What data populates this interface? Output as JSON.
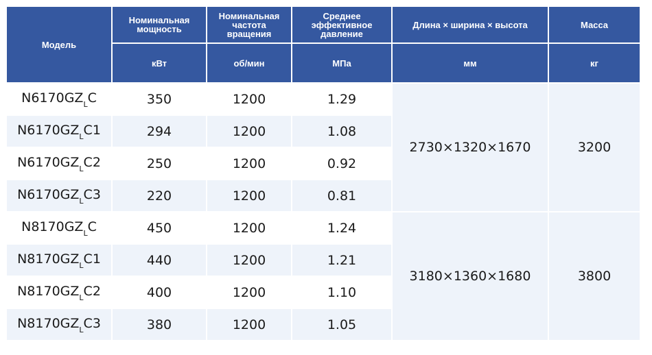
{
  "headers": {
    "model": "Модель",
    "power": "Номинальная мощность",
    "speed": "Номинальная частота вращения",
    "pressure": "Среднее эффективное давление",
    "dimensions": "Длина × ширина × высота",
    "mass": "Масса"
  },
  "units": {
    "power": "кВт",
    "speed": "об/мин",
    "pressure": "МПа",
    "dimensions": "мм",
    "mass": "кг"
  },
  "groups": [
    {
      "dimensions": "2730×1320×1670",
      "mass": "3200",
      "rows": [
        {
          "model_prefix": "N6170GZ",
          "model_sub": "L",
          "model_suffix": "C",
          "power": "350",
          "speed": "1200",
          "pressure": "1.29"
        },
        {
          "model_prefix": "N6170GZ",
          "model_sub": "L",
          "model_suffix": "C1",
          "power": "294",
          "speed": "1200",
          "pressure": "1.08"
        },
        {
          "model_prefix": "N6170GZ",
          "model_sub": "L",
          "model_suffix": "C2",
          "power": "250",
          "speed": "1200",
          "pressure": "0.92"
        },
        {
          "model_prefix": "N6170GZ",
          "model_sub": "L",
          "model_suffix": "C3",
          "power": "220",
          "speed": "1200",
          "pressure": "0.81"
        }
      ]
    },
    {
      "dimensions": "3180×1360×1680",
      "mass": "3800",
      "rows": [
        {
          "model_prefix": "N8170GZ",
          "model_sub": "L",
          "model_suffix": "C",
          "power": "450",
          "speed": "1200",
          "pressure": "1.24"
        },
        {
          "model_prefix": "N8170GZ",
          "model_sub": "L",
          "model_suffix": "C1",
          "power": "440",
          "speed": "1200",
          "pressure": "1.21"
        },
        {
          "model_prefix": "N8170GZ",
          "model_sub": "L",
          "model_suffix": "C2",
          "power": "400",
          "speed": "1200",
          "pressure": "1.10"
        },
        {
          "model_prefix": "N8170GZ",
          "model_sub": "L",
          "model_suffix": "C3",
          "power": "380",
          "speed": "1200",
          "pressure": "1.05"
        }
      ]
    }
  ]
}
